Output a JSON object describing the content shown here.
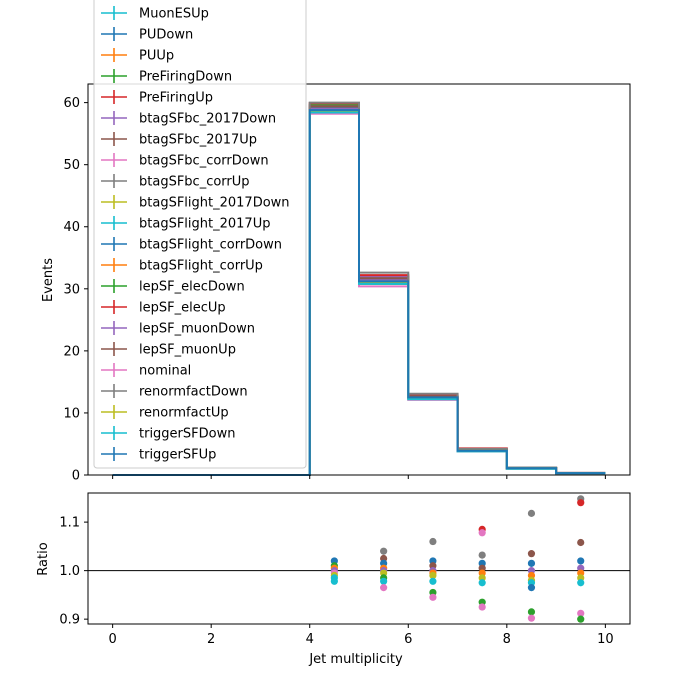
{
  "chart_data": [
    {
      "type": "step",
      "ylabel": "Events",
      "xlim": [
        -0.5,
        10.5
      ],
      "ylim": [
        0,
        63
      ],
      "yticks": [
        0,
        10,
        20,
        30,
        40,
        50,
        60
      ],
      "bin_edges": [
        0,
        1,
        2,
        3,
        4,
        5,
        6,
        7,
        8,
        9,
        10
      ],
      "legend_loc": "upper left",
      "series": [
        {
          "name": "MuonESUp",
          "color": "#17becf",
          "values": [
            0,
            0,
            0,
            0,
            59.2,
            31.5,
            12.6,
            4.0,
            1.1,
            0.3
          ]
        },
        {
          "name": "PUDown",
          "color": "#1f77b4",
          "values": [
            0,
            0,
            0,
            0,
            59.0,
            31.3,
            12.5,
            3.9,
            1.1,
            0.3
          ]
        },
        {
          "name": "PUUp",
          "color": "#ff7f0e",
          "values": [
            0,
            0,
            0,
            0,
            58.8,
            31.2,
            12.6,
            4.0,
            1.1,
            0.3
          ]
        },
        {
          "name": "PreFiringDown",
          "color": "#2ca02c",
          "values": [
            0,
            0,
            0,
            0,
            59.6,
            31.9,
            12.8,
            4.1,
            1.1,
            0.3
          ]
        },
        {
          "name": "PreFiringUp",
          "color": "#d62728",
          "values": [
            0,
            0,
            0,
            0,
            58.6,
            31.0,
            12.5,
            3.9,
            1.1,
            0.3
          ]
        },
        {
          "name": "btagSFbc_2017Down",
          "color": "#9467bd",
          "values": [
            0,
            0,
            0,
            0,
            59.4,
            32.0,
            13.0,
            4.1,
            1.1,
            0.3
          ]
        },
        {
          "name": "btagSFbc_2017Up",
          "color": "#8c564b",
          "values": [
            0,
            0,
            0,
            0,
            58.9,
            31.1,
            12.4,
            3.9,
            1.1,
            0.3
          ]
        },
        {
          "name": "btagSFbc_corrDown",
          "color": "#e377c2",
          "values": [
            0,
            0,
            0,
            0,
            59.3,
            31.6,
            12.7,
            4.0,
            1.1,
            0.3
          ]
        },
        {
          "name": "btagSFbc_corrUp",
          "color": "#7f7f7f",
          "values": [
            0,
            0,
            0,
            0,
            59.1,
            31.4,
            12.6,
            4.0,
            1.1,
            0.3
          ]
        },
        {
          "name": "btagSFlight_2017Down",
          "color": "#bcbd22",
          "values": [
            0,
            0,
            0,
            0,
            59.2,
            31.5,
            12.6,
            4.0,
            1.1,
            0.3
          ]
        },
        {
          "name": "btagSFlight_2017Up",
          "color": "#17becf",
          "values": [
            0,
            0,
            0,
            0,
            59.0,
            31.3,
            12.5,
            3.9,
            1.1,
            0.3
          ]
        },
        {
          "name": "btagSFlight_corrDown",
          "color": "#1f77b4",
          "values": [
            0,
            0,
            0,
            0,
            59.2,
            31.5,
            12.6,
            4.0,
            1.1,
            0.3
          ]
        },
        {
          "name": "btagSFlight_corrUp",
          "color": "#ff7f0e",
          "values": [
            0,
            0,
            0,
            0,
            59.0,
            31.3,
            12.5,
            3.9,
            1.1,
            0.3
          ]
        },
        {
          "name": "lepSF_elecDown",
          "color": "#2ca02c",
          "values": [
            0,
            0,
            0,
            0,
            58.4,
            30.8,
            12.2,
            3.8,
            1.0,
            0.27
          ]
        },
        {
          "name": "lepSF_elecUp",
          "color": "#d62728",
          "values": [
            0,
            0,
            0,
            0,
            59.9,
            32.2,
            13.0,
            4.3,
            1.2,
            0.34
          ]
        },
        {
          "name": "lepSF_muonDown",
          "color": "#9467bd",
          "values": [
            0,
            0,
            0,
            0,
            59.0,
            31.4,
            12.6,
            4.0,
            1.1,
            0.3
          ]
        },
        {
          "name": "lepSF_muonUp",
          "color": "#8c564b",
          "values": [
            0,
            0,
            0,
            0,
            59.4,
            31.7,
            12.7,
            4.0,
            1.1,
            0.3
          ]
        },
        {
          "name": "nominal",
          "color": "#e377c2",
          "values": [
            0,
            0,
            0,
            0,
            58.2,
            30.4,
            12.1,
            3.8,
            1.0,
            0.27
          ]
        },
        {
          "name": "renormfactDown",
          "color": "#7f7f7f",
          "values": [
            0,
            0,
            0,
            0,
            60.0,
            32.6,
            13.1,
            4.2,
            1.2,
            0.34
          ]
        },
        {
          "name": "renormfactUp",
          "color": "#bcbd22",
          "values": [
            0,
            0,
            0,
            0,
            58.6,
            31.0,
            12.4,
            3.9,
            1.1,
            0.3
          ]
        },
        {
          "name": "triggerSFDown",
          "color": "#17becf",
          "values": [
            0,
            0,
            0,
            0,
            58.4,
            30.8,
            12.2,
            3.8,
            1.0,
            0.29
          ]
        },
        {
          "name": "triggerSFUp",
          "color": "#1f77b4",
          "values": [
            0,
            0,
            0,
            0,
            58.8,
            31.2,
            12.5,
            3.9,
            1.1,
            0.3
          ]
        }
      ]
    },
    {
      "type": "scatter",
      "xlabel": "Jet multiplicity",
      "ylabel": "Ratio",
      "xlim": [
        -0.5,
        10.5
      ],
      "ylim": [
        0.89,
        1.16
      ],
      "xticks": [
        0,
        2,
        4,
        6,
        8,
        10
      ],
      "yticks": [
        0.9,
        1.0,
        1.1
      ],
      "reference_line": 1.0,
      "points": [
        {
          "x": 4.5,
          "y": 1.02,
          "color": "#1f77b4"
        },
        {
          "x": 4.5,
          "y": 1.01,
          "color": "#2ca02c"
        },
        {
          "x": 4.5,
          "y": 1.005,
          "color": "#ff7f0e"
        },
        {
          "x": 4.5,
          "y": 1.0,
          "color": "#9467bd"
        },
        {
          "x": 4.5,
          "y": 0.995,
          "color": "#e377c2"
        },
        {
          "x": 4.5,
          "y": 0.99,
          "color": "#bcbd22"
        },
        {
          "x": 4.5,
          "y": 0.985,
          "color": "#17becf"
        },
        {
          "x": 4.5,
          "y": 0.978,
          "color": "#17becf"
        },
        {
          "x": 5.5,
          "y": 1.04,
          "color": "#7f7f7f"
        },
        {
          "x": 5.5,
          "y": 1.025,
          "color": "#8c564b"
        },
        {
          "x": 5.5,
          "y": 1.015,
          "color": "#1f77b4"
        },
        {
          "x": 5.5,
          "y": 1.005,
          "color": "#ff7f0e"
        },
        {
          "x": 5.5,
          "y": 1.0,
          "color": "#9467bd"
        },
        {
          "x": 5.5,
          "y": 0.995,
          "color": "#bcbd22"
        },
        {
          "x": 5.5,
          "y": 0.985,
          "color": "#2ca02c"
        },
        {
          "x": 5.5,
          "y": 0.978,
          "color": "#17becf"
        },
        {
          "x": 5.5,
          "y": 0.965,
          "color": "#e377c2"
        },
        {
          "x": 6.5,
          "y": 1.06,
          "color": "#7f7f7f"
        },
        {
          "x": 6.5,
          "y": 1.02,
          "color": "#1f77b4"
        },
        {
          "x": 6.5,
          "y": 1.01,
          "color": "#8c564b"
        },
        {
          "x": 6.5,
          "y": 1.0,
          "color": "#9467bd"
        },
        {
          "x": 6.5,
          "y": 0.995,
          "color": "#ff7f0e"
        },
        {
          "x": 6.5,
          "y": 0.99,
          "color": "#bcbd22"
        },
        {
          "x": 6.5,
          "y": 0.978,
          "color": "#17becf"
        },
        {
          "x": 6.5,
          "y": 0.955,
          "color": "#2ca02c"
        },
        {
          "x": 6.5,
          "y": 0.945,
          "color": "#e377c2"
        },
        {
          "x": 7.5,
          "y": 1.085,
          "color": "#d62728"
        },
        {
          "x": 7.5,
          "y": 1.078,
          "color": "#e377c2"
        },
        {
          "x": 7.5,
          "y": 1.032,
          "color": "#7f7f7f"
        },
        {
          "x": 7.5,
          "y": 1.015,
          "color": "#1f77b4"
        },
        {
          "x": 7.5,
          "y": 1.005,
          "color": "#8c564b"
        },
        {
          "x": 7.5,
          "y": 0.995,
          "color": "#ff7f0e"
        },
        {
          "x": 7.5,
          "y": 0.985,
          "color": "#bcbd22"
        },
        {
          "x": 7.5,
          "y": 0.975,
          "color": "#17becf"
        },
        {
          "x": 7.5,
          "y": 0.935,
          "color": "#2ca02c"
        },
        {
          "x": 7.5,
          "y": 0.925,
          "color": "#e377c2"
        },
        {
          "x": 8.5,
          "y": 1.118,
          "color": "#7f7f7f"
        },
        {
          "x": 8.5,
          "y": 1.035,
          "color": "#8c564b"
        },
        {
          "x": 8.5,
          "y": 1.015,
          "color": "#1f77b4"
        },
        {
          "x": 8.5,
          "y": 1.0,
          "color": "#9467bd"
        },
        {
          "x": 8.5,
          "y": 0.99,
          "color": "#ff7f0e"
        },
        {
          "x": 8.5,
          "y": 0.98,
          "color": "#bcbd22"
        },
        {
          "x": 8.5,
          "y": 0.975,
          "color": "#17becf"
        },
        {
          "x": 8.5,
          "y": 0.965,
          "color": "#1f77b4"
        },
        {
          "x": 8.5,
          "y": 0.915,
          "color": "#2ca02c"
        },
        {
          "x": 8.5,
          "y": 0.902,
          "color": "#e377c2"
        },
        {
          "x": 9.5,
          "y": 1.148,
          "color": "#7f7f7f"
        },
        {
          "x": 9.5,
          "y": 1.14,
          "color": "#d62728"
        },
        {
          "x": 9.5,
          "y": 1.058,
          "color": "#8c564b"
        },
        {
          "x": 9.5,
          "y": 1.02,
          "color": "#1f77b4"
        },
        {
          "x": 9.5,
          "y": 1.005,
          "color": "#9467bd"
        },
        {
          "x": 9.5,
          "y": 0.995,
          "color": "#ff7f0e"
        },
        {
          "x": 9.5,
          "y": 0.985,
          "color": "#bcbd22"
        },
        {
          "x": 9.5,
          "y": 0.975,
          "color": "#17becf"
        },
        {
          "x": 9.5,
          "y": 0.912,
          "color": "#e377c2"
        },
        {
          "x": 9.5,
          "y": 0.9,
          "color": "#2ca02c"
        }
      ]
    }
  ]
}
